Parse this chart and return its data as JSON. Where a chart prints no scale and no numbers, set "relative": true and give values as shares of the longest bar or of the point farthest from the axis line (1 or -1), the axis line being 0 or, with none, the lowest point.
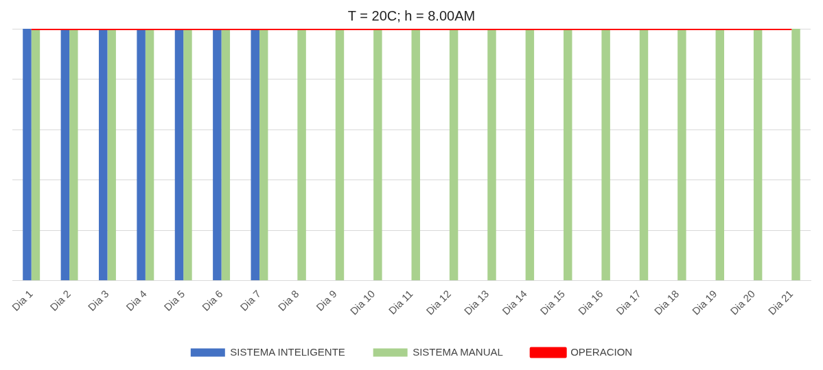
{
  "chart_data": {
    "type": "bar",
    "title": "T = 20C; h = 8.00AM",
    "categories": [
      "Dia 1",
      "Dia 2",
      "Dia 3",
      "Dia 4",
      "Dia 5",
      "Dia 6",
      "Dia 7",
      "Dia 8",
      "Dia 9",
      "Dia 10",
      "Dia 11",
      "Dia 12",
      "Dia 13",
      "Dia 14",
      "Dia 15",
      "Dia 16",
      "Dia 17",
      "Dia 18",
      "Dia 19",
      "Dia 20",
      "Dia 21"
    ],
    "relative": true,
    "grid": "y",
    "legend": "bottom",
    "series": [
      {
        "name": "SISTEMA INTELIGENTE",
        "color": "#4472c4",
        "values": [
          1,
          1,
          1,
          1,
          1,
          1,
          1,
          null,
          null,
          null,
          null,
          null,
          null,
          null,
          null,
          null,
          null,
          null,
          null,
          null,
          null
        ]
      },
      {
        "name": "SISTEMA MANUAL",
        "color": "#a9d18e",
        "values": [
          1,
          1,
          1,
          1,
          1,
          1,
          1,
          1,
          1,
          1,
          1,
          1,
          1,
          1,
          1,
          1,
          1,
          1,
          1,
          1,
          1
        ]
      },
      {
        "name": "OPERACION",
        "type": "line",
        "color": "#ff0000",
        "values": [
          1,
          1,
          1,
          1,
          1,
          1,
          1,
          1,
          1,
          1,
          1,
          1,
          1,
          1,
          1,
          1,
          1,
          1,
          1,
          1,
          1
        ]
      }
    ]
  }
}
